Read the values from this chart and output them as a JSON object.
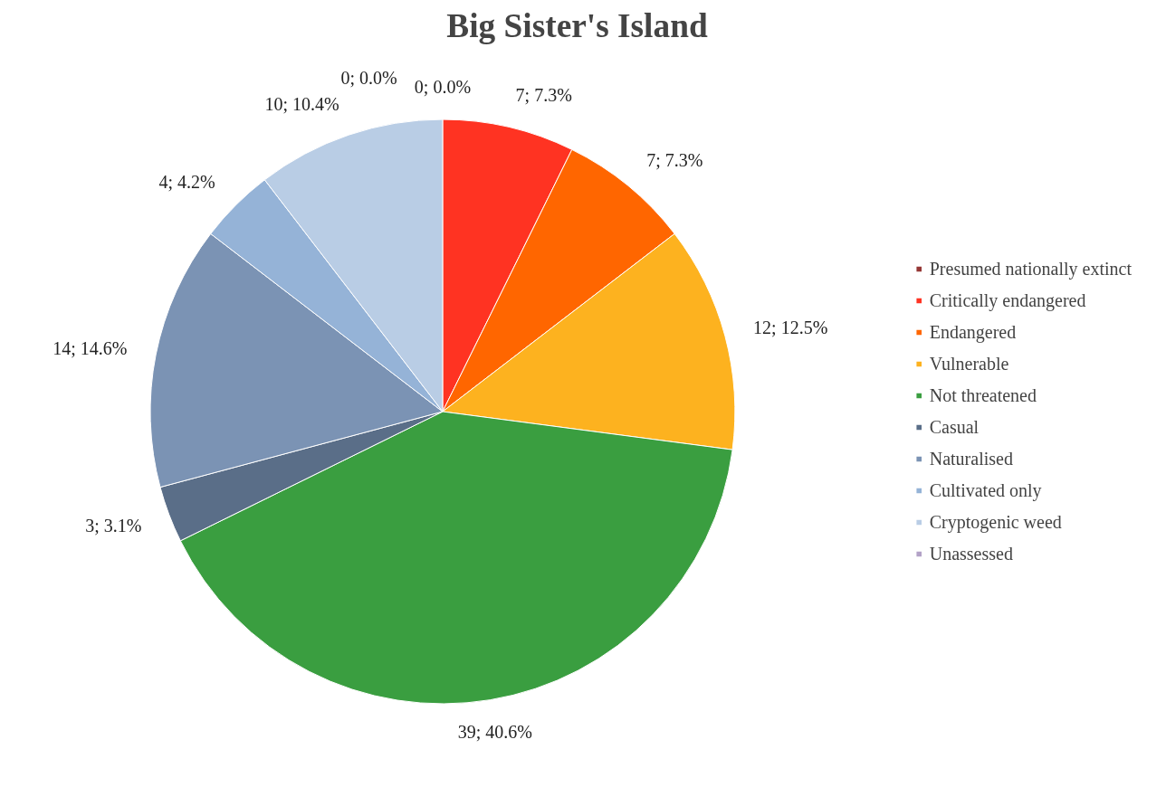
{
  "chart_data": {
    "type": "pie",
    "title": "Big Sister's Island",
    "categories": [
      "Presumed nationally extinct",
      "Critically endangered",
      "Endangered",
      "Vulnerable",
      "Not threatened",
      "Casual",
      "Naturalised",
      "Cultivated only",
      "Cryptogenic weed",
      "Unassessed"
    ],
    "values": [
      0,
      7,
      7,
      12,
      39,
      3,
      14,
      4,
      10,
      0
    ],
    "colors": [
      "#953735",
      "#ff3322",
      "#ff6600",
      "#fdb21f",
      "#3a9e40",
      "#5a6e88",
      "#7b93b4",
      "#95b3d7",
      "#b9cde5",
      "#b3a2c7"
    ],
    "value_labels": [
      "0; 0.0%",
      "7; 7.3%",
      "7; 7.3%",
      "12; 12.5%",
      "39; 40.6%",
      "3; 3.1%",
      "14; 14.6%",
      "4; 4.2%",
      "10; 10.4%",
      "0; 0.0%"
    ],
    "legend": "right"
  }
}
